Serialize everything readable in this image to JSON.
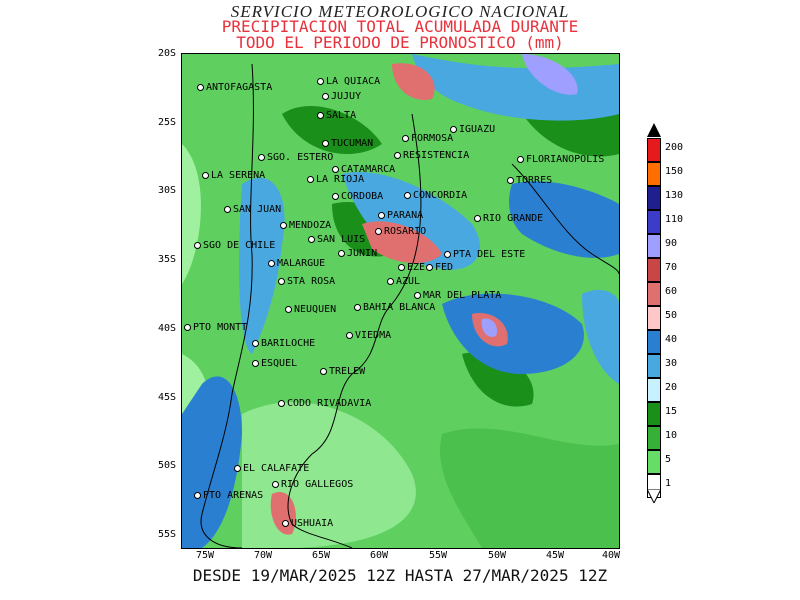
{
  "title": {
    "line1": "SERVICIO METEOROLOGICO NACIONAL",
    "line2": "PRECIPITACION TOTAL ACUMULADA DURANTE",
    "line3": "TODO EL PERIODO DE PRONOSTICO (mm)"
  },
  "footer": "DESDE 19/MAR/2025 12Z HASTA 27/MAR/2025 12Z",
  "lat_labels": [
    "20S",
    "25S",
    "30S",
    "35S",
    "40S",
    "45S",
    "50S",
    "55S"
  ],
  "lon_labels": [
    "75W",
    "70W",
    "65W",
    "60W",
    "55W",
    "50W",
    "45W",
    "40W"
  ],
  "legend": {
    "labels": [
      "200",
      "150",
      "130",
      "110",
      "90",
      "70",
      "60",
      "50",
      "40",
      "30",
      "20",
      "15",
      "10",
      "5",
      "1"
    ],
    "colors": [
      "#e41a1c",
      "#ff6f00",
      "#1f1f8f",
      "#3c3cc8",
      "#9f9fff",
      "#c84646",
      "#e07070",
      "#ffc8c8",
      "#2b7fd0",
      "#4aa8e0",
      "#c8f0ff",
      "#1a8f1a",
      "#36b036",
      "#66dd66",
      "#ffffff"
    ]
  },
  "cities": [
    "LA QUIACA",
    "ANTOFAGASTA",
    "JUJUY",
    "SALTA",
    "IGUAZU",
    "FORMOSA",
    "TUCUMAN",
    "RESISTENCIA",
    "FLORIANOPOLIS",
    "SGO. ESTERO",
    "LA SERENA",
    "LA RIOJA",
    "CATAMARCA",
    "TORRES",
    "CONCORDIA",
    "CORDOBA",
    "SAN JUAN",
    "PARANA",
    "RIO GRANDE",
    "MENDOZA",
    "ROSARIO",
    "SAN LUIS",
    "SGO DE CHILE",
    "JUNIN",
    "PTA DEL ESTE",
    "MALARGUE",
    "EZE",
    "FED",
    "AZUL",
    "STA ROSA",
    "MAR DEL PLATA",
    "NEUQUEN",
    "BAHIA BLANCA",
    "PTO MONTT",
    "VIEDMA",
    "BARILOCHE",
    "ESQUEL",
    "TRELEW",
    "CODO RIVADAVIA",
    "EL CALAFATE",
    "RIO GALLEGOS",
    "PTO ARENAS",
    "USHUAIA"
  ]
}
